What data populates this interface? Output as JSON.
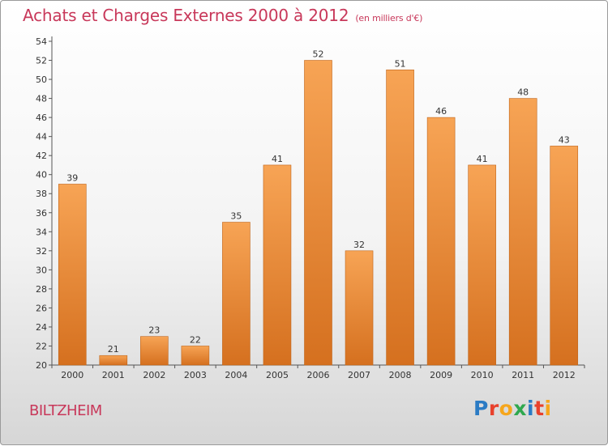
{
  "chart_data": {
    "type": "bar",
    "title": "Achats et Charges Externes 2000 à 2012",
    "subtitle": "(en milliers d'€)",
    "categories": [
      "2000",
      "2001",
      "2002",
      "2003",
      "2004",
      "2005",
      "2006",
      "2007",
      "2008",
      "2009",
      "2010",
      "2011",
      "2012"
    ],
    "values": [
      39,
      21,
      23,
      22,
      35,
      41,
      52,
      32,
      51,
      46,
      41,
      48,
      43
    ],
    "ylim": [
      20,
      54
    ],
    "yticks": [
      20,
      22,
      24,
      26,
      28,
      30,
      32,
      34,
      36,
      38,
      40,
      42,
      44,
      46,
      48,
      50,
      52,
      54
    ],
    "xlabel": "",
    "ylabel": "",
    "grid": false,
    "bar_color": "#f0923a"
  },
  "commune": "BILTZHEIM",
  "brand": {
    "letters": [
      "P",
      "r",
      "o",
      "x",
      "i",
      "t",
      "i"
    ],
    "colors": [
      "#2b7bc4",
      "#e8412c",
      "#f6a61c",
      "#2fa84f",
      "#2b7bc4",
      "#e8412c",
      "#f6a61c"
    ]
  }
}
